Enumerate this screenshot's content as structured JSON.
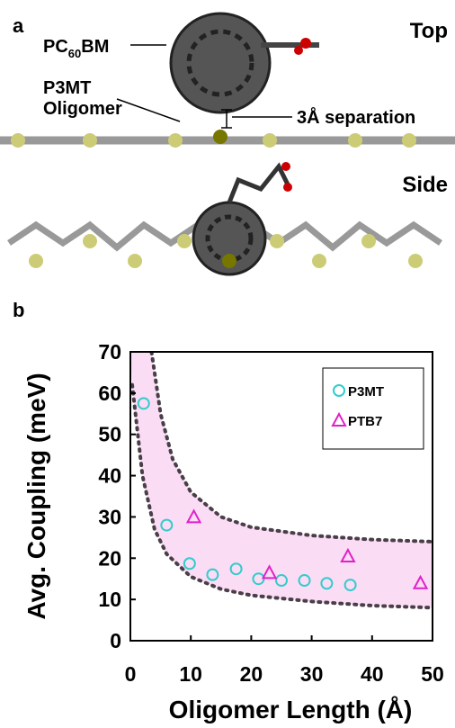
{
  "panel_a": {
    "label": "a",
    "top_label": "Top",
    "side_label": "Side",
    "pcbm": {
      "prefix": "PC",
      "subscript": "60",
      "suffix": "BM"
    },
    "oligomer": [
      "P3MT",
      "Oligomer"
    ],
    "separation": "3Å separation"
  },
  "panel_b_label": "b",
  "chart_data": {
    "type": "scatter",
    "xlabel": "Oligomer Length (Å)",
    "ylabel": "Avg. Coupling  (meV)",
    "xlim": [
      0,
      50
    ],
    "xticks": [
      0,
      10,
      20,
      30,
      40,
      50
    ],
    "ylim": [
      0,
      70
    ],
    "yticks": [
      0,
      10,
      20,
      30,
      40,
      50,
      60,
      70
    ],
    "legend": "upper right",
    "series": [
      {
        "name": "P3MT",
        "color": "#33cccc",
        "marker": "circle",
        "x": [
          2.2,
          6,
          9.8,
          13.6,
          17.5,
          21.2,
          25,
          28.8,
          32.5,
          36.4
        ],
        "values": [
          57.5,
          28,
          18.7,
          16,
          17.4,
          15,
          14.6,
          14.6,
          13.9,
          13.5
        ]
      },
      {
        "name": "PTB7",
        "color": "#e020c8",
        "marker": "triangle",
        "x": [
          10.5,
          23,
          36,
          48
        ],
        "values": [
          30,
          16.5,
          20.5,
          14
        ]
      }
    ],
    "band": {
      "fill": "#fbdcf5",
      "line_color": "#4a3f48",
      "upper": {
        "x": [
          3.5,
          5,
          7,
          10,
          15,
          20,
          30,
          40,
          50
        ],
        "values": [
          70,
          55,
          44,
          36,
          30,
          27.5,
          25.5,
          24.5,
          24
        ]
      },
      "lower": {
        "x": [
          0.3,
          2,
          4,
          6,
          10,
          15,
          20,
          30,
          40,
          50
        ],
        "values": [
          62,
          40,
          27,
          21,
          15.5,
          12.5,
          11,
          9.5,
          8.5,
          8
        ]
      }
    }
  }
}
